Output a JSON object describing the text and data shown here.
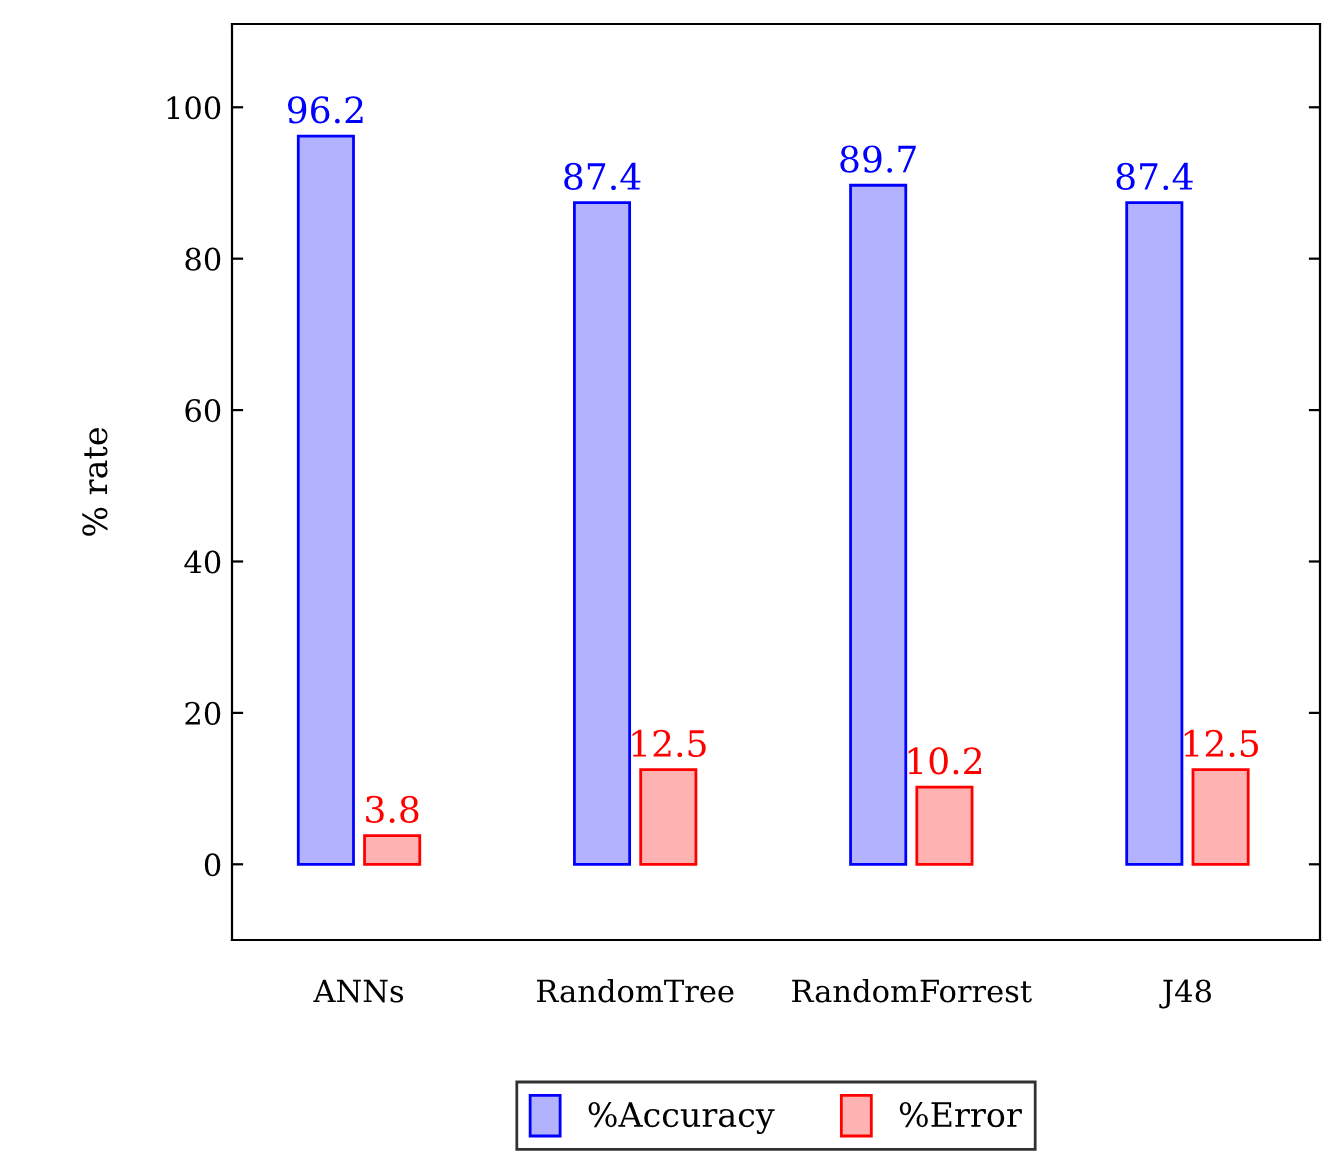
{
  "chart_data": {
    "type": "bar",
    "ylabel": "% rate",
    "categories": [
      "ANNs",
      "RandomTree",
      "RandomForrest",
      "J48"
    ],
    "series": [
      {
        "name": "%Accuracy",
        "color": "#0000ff",
        "values": [
          96.2,
          87.4,
          89.7,
          87.4
        ]
      },
      {
        "name": "%Error",
        "color": "#ff0000",
        "values": [
          3.8,
          12.5,
          10.2,
          12.5
        ]
      }
    ],
    "ylim": [
      -10,
      111
    ],
    "yticks": [
      0,
      20,
      40,
      60,
      80,
      100
    ],
    "grid": false,
    "legend": "bottom",
    "data_labels": true
  }
}
